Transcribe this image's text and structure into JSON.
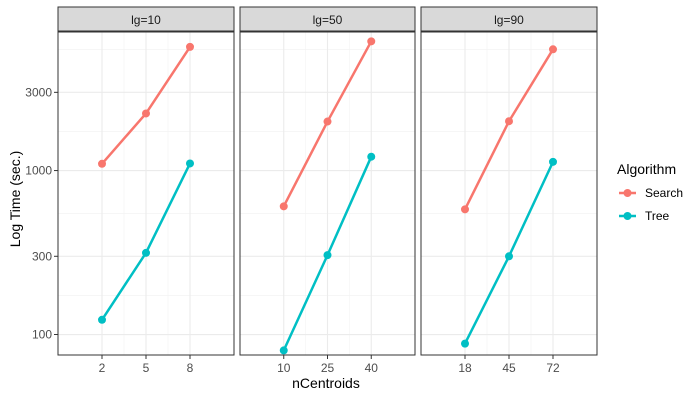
{
  "chart_data": {
    "type": "line",
    "xlabel": "nCentroids",
    "ylabel": "Log Time (sec.)",
    "y_scale": "log",
    "ylim": [
      75,
      7000
    ],
    "y_ticks": [
      100,
      300,
      1000,
      3000
    ],
    "y_tick_labels": [
      "100",
      "300",
      "1000",
      "3000"
    ],
    "grid": true,
    "legend": {
      "title": "Algorithm",
      "position": "right",
      "entries": [
        "Search",
        "Tree"
      ]
    },
    "colors": {
      "Search": "#F8766D",
      "Tree": "#00BFC4"
    },
    "facets": [
      {
        "label": "lg=10",
        "x": [
          "2",
          "5",
          "8"
        ],
        "series": [
          {
            "name": "Search",
            "values": [
              1100,
              2230,
              5680
            ]
          },
          {
            "name": "Tree",
            "values": [
              123,
              315,
              1105
            ]
          }
        ]
      },
      {
        "label": "lg=50",
        "x": [
          "10",
          "25",
          "40"
        ],
        "series": [
          {
            "name": "Search",
            "values": [
              605,
              1990,
              6140
            ]
          },
          {
            "name": "Tree",
            "values": [
              80,
              305,
              1215
            ]
          }
        ]
      },
      {
        "label": "lg=90",
        "x": [
          "18",
          "45",
          "72"
        ],
        "series": [
          {
            "name": "Search",
            "values": [
              580,
              2000,
              5490
            ]
          },
          {
            "name": "Tree",
            "values": [
              88,
              300,
              1130
            ]
          }
        ]
      }
    ]
  }
}
